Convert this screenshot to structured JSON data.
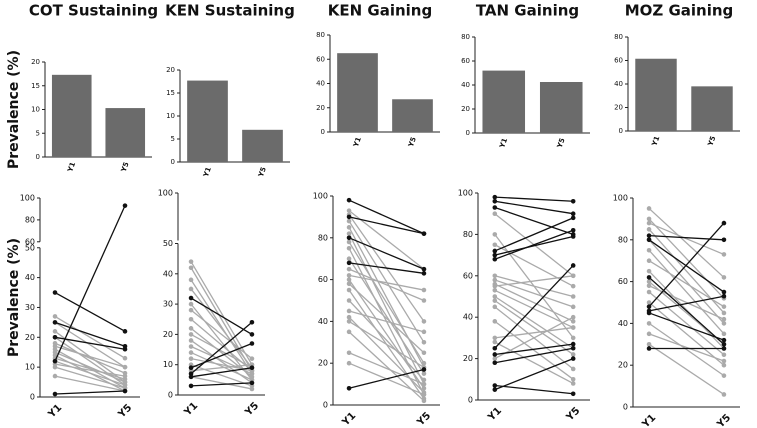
{
  "chart_data": [
    {
      "type": "bar",
      "title": "COT Sustaining",
      "y_label": "Prevalence (%)",
      "categories": [
        "Y1",
        "Y5"
      ],
      "values": [
        17.3,
        10.3
      ],
      "color": "#6b6b6b",
      "ylim": [
        0,
        20
      ],
      "yticks": [
        0,
        5,
        10,
        15,
        20
      ]
    },
    {
      "type": "bar",
      "title": "KEN Sustaining",
      "categories": [
        "Y1",
        "Y5"
      ],
      "values": [
        17.7,
        7.0
      ],
      "color": "#6b6b6b",
      "ylim": [
        0,
        20
      ],
      "yticks": [
        0,
        5,
        10,
        15,
        20
      ]
    },
    {
      "type": "bar",
      "title": "KEN Gaining",
      "categories": [
        "Y1",
        "Y5"
      ],
      "values": [
        65,
        27
      ],
      "color": "#6b6b6b",
      "ylim": [
        0,
        80
      ],
      "yticks": [
        0,
        20,
        40,
        60,
        80
      ]
    },
    {
      "type": "bar",
      "title": "TAN Gaining",
      "categories": [
        "Y1",
        "Y5"
      ],
      "values": [
        52,
        42.5
      ],
      "color": "#6b6b6b",
      "ylim": [
        0,
        80
      ],
      "yticks": [
        0,
        20,
        40,
        60,
        80
      ]
    },
    {
      "type": "bar",
      "title": "MOZ Gaining",
      "categories": [
        "Y1",
        "Y5"
      ],
      "values": [
        61.5,
        38
      ],
      "color": "#6b6b6b",
      "ylim": [
        0,
        80
      ],
      "yticks": [
        0,
        20,
        40,
        60,
        80
      ]
    },
    {
      "type": "line",
      "y_label": "Prevalence (%)",
      "categories": [
        "Y1",
        "Y5"
      ],
      "ylim": [
        0,
        100
      ],
      "axis_break": [
        50,
        60
      ],
      "yticks": [
        0,
        10,
        20,
        30,
        40,
        50,
        60,
        80,
        100
      ],
      "series": [
        {
          "color": "#aaaaaa",
          "values": [
            25,
            10
          ]
        },
        {
          "color": "#aaaaaa",
          "values": [
            22,
            5
          ]
        },
        {
          "color": "#aaaaaa",
          "values": [
            20,
            4
          ]
        },
        {
          "color": "#aaaaaa",
          "values": [
            18,
            8
          ]
        },
        {
          "color": "#aaaaaa",
          "values": [
            16,
            3
          ]
        },
        {
          "color": "#aaaaaa",
          "values": [
            15,
            5
          ]
        },
        {
          "color": "#aaaaaa",
          "values": [
            14,
            2
          ]
        },
        {
          "color": "#aaaaaa",
          "values": [
            13,
            6
          ]
        },
        {
          "color": "#aaaaaa",
          "values": [
            12,
            4
          ]
        },
        {
          "color": "#aaaaaa",
          "values": [
            11,
            7
          ]
        },
        {
          "color": "#aaaaaa",
          "values": [
            10,
            3
          ]
        },
        {
          "color": "#aaaaaa",
          "values": [
            17,
            10
          ]
        },
        {
          "color": "#aaaaaa",
          "values": [
            27,
            13
          ]
        },
        {
          "color": "#aaaaaa",
          "values": [
            7,
            2
          ]
        },
        {
          "color": "#111111",
          "values": [
            35,
            22
          ]
        },
        {
          "color": "#111111",
          "values": [
            25,
            17
          ]
        },
        {
          "color": "#111111",
          "values": [
            20,
            16
          ]
        },
        {
          "color": "#111111",
          "values": [
            1,
            2
          ]
        },
        {
          "color": "#111111",
          "values": [
            12,
            93
          ]
        }
      ]
    },
    {
      "type": "line",
      "categories": [
        "Y1",
        "Y5"
      ],
      "ylim": [
        0,
        100
      ],
      "axis_break": [
        50,
        50
      ],
      "yticks": [
        0,
        10,
        20,
        30,
        40,
        50,
        100
      ],
      "series": [
        {
          "color": "#aaaaaa",
          "values": [
            44,
            10
          ]
        },
        {
          "color": "#aaaaaa",
          "values": [
            42,
            8
          ]
        },
        {
          "color": "#aaaaaa",
          "values": [
            38,
            7
          ]
        },
        {
          "color": "#aaaaaa",
          "values": [
            35,
            9
          ]
        },
        {
          "color": "#aaaaaa",
          "values": [
            30,
            5
          ]
        },
        {
          "color": "#aaaaaa",
          "values": [
            28,
            12
          ]
        },
        {
          "color": "#aaaaaa",
          "values": [
            25,
            8
          ]
        },
        {
          "color": "#aaaaaa",
          "values": [
            22,
            6
          ]
        },
        {
          "color": "#aaaaaa",
          "values": [
            20,
            9
          ]
        },
        {
          "color": "#aaaaaa",
          "values": [
            18,
            4
          ]
        },
        {
          "color": "#aaaaaa",
          "values": [
            16,
            7
          ]
        },
        {
          "color": "#aaaaaa",
          "values": [
            14,
            5
          ]
        },
        {
          "color": "#aaaaaa",
          "values": [
            12,
            8
          ]
        },
        {
          "color": "#aaaaaa",
          "values": [
            10,
            3
          ]
        },
        {
          "color": "#aaaaaa",
          "values": [
            8,
            10
          ]
        },
        {
          "color": "#aaaaaa",
          "values": [
            6,
            2
          ]
        },
        {
          "color": "#111111",
          "values": [
            32,
            20
          ]
        },
        {
          "color": "#111111",
          "values": [
            9,
            17
          ]
        },
        {
          "color": "#111111",
          "values": [
            7,
            24
          ]
        },
        {
          "color": "#111111",
          "values": [
            6,
            9
          ]
        },
        {
          "color": "#111111",
          "values": [
            3,
            4
          ]
        }
      ]
    },
    {
      "type": "line",
      "categories": [
        "Y1",
        "Y5"
      ],
      "ylim": [
        0,
        100
      ],
      "yticks": [
        0,
        20,
        40,
        60,
        80,
        100
      ],
      "series": [
        {
          "color": "#aaaaaa",
          "values": [
            93,
            65
          ]
        },
        {
          "color": "#aaaaaa",
          "values": [
            91,
            40
          ]
        },
        {
          "color": "#aaaaaa",
          "values": [
            88,
            30
          ]
        },
        {
          "color": "#aaaaaa",
          "values": [
            85,
            18
          ]
        },
        {
          "color": "#aaaaaa",
          "values": [
            82,
            10
          ]
        },
        {
          "color": "#aaaaaa",
          "values": [
            78,
            20
          ]
        },
        {
          "color": "#aaaaaa",
          "values": [
            75,
            5
          ]
        },
        {
          "color": "#aaaaaa",
          "values": [
            70,
            15
          ]
        },
        {
          "color": "#aaaaaa",
          "values": [
            65,
            50
          ]
        },
        {
          "color": "#aaaaaa",
          "values": [
            60,
            8
          ]
        },
        {
          "color": "#aaaaaa",
          "values": [
            58,
            25
          ]
        },
        {
          "color": "#aaaaaa",
          "values": [
            55,
            3
          ]
        },
        {
          "color": "#aaaaaa",
          "values": [
            50,
            12
          ]
        },
        {
          "color": "#aaaaaa",
          "values": [
            45,
            35
          ]
        },
        {
          "color": "#aaaaaa",
          "values": [
            42,
            6
          ]
        },
        {
          "color": "#aaaaaa",
          "values": [
            40,
            18
          ]
        },
        {
          "color": "#aaaaaa",
          "values": [
            35,
            2
          ]
        },
        {
          "color": "#aaaaaa",
          "values": [
            25,
            10
          ]
        },
        {
          "color": "#aaaaaa",
          "values": [
            20,
            5
          ]
        },
        {
          "color": "#aaaaaa",
          "values": [
            62,
            55
          ]
        },
        {
          "color": "#111111",
          "values": [
            98,
            82
          ]
        },
        {
          "color": "#111111",
          "values": [
            90,
            82
          ]
        },
        {
          "color": "#111111",
          "values": [
            68,
            63
          ]
        },
        {
          "color": "#111111",
          "values": [
            80,
            65
          ]
        },
        {
          "color": "#111111",
          "values": [
            8,
            17
          ]
        }
      ]
    },
    {
      "type": "line",
      "categories": [
        "Y1",
        "Y5"
      ],
      "ylim": [
        0,
        100
      ],
      "yticks": [
        0,
        20,
        40,
        60,
        80,
        100
      ],
      "series": [
        {
          "color": "#aaaaaa",
          "values": [
            80,
            30
          ]
        },
        {
          "color": "#aaaaaa",
          "values": [
            60,
            50
          ]
        },
        {
          "color": "#aaaaaa",
          "values": [
            58,
            45
          ]
        },
        {
          "color": "#aaaaaa",
          "values": [
            56,
            38
          ]
        },
        {
          "color": "#aaaaaa",
          "values": [
            55,
            60
          ]
        },
        {
          "color": "#aaaaaa",
          "values": [
            53,
            35
          ]
        },
        {
          "color": "#aaaaaa",
          "values": [
            50,
            25
          ]
        },
        {
          "color": "#aaaaaa",
          "values": [
            48,
            22
          ]
        },
        {
          "color": "#aaaaaa",
          "values": [
            45,
            15
          ]
        },
        {
          "color": "#aaaaaa",
          "values": [
            38,
            10
          ]
        },
        {
          "color": "#aaaaaa",
          "values": [
            30,
            35
          ]
        },
        {
          "color": "#aaaaaa",
          "values": [
            28,
            8
          ]
        },
        {
          "color": "#aaaaaa",
          "values": [
            20,
            40
          ]
        },
        {
          "color": "#aaaaaa",
          "values": [
            90,
            60
          ]
        },
        {
          "color": "#aaaaaa",
          "values": [
            75,
            55
          ]
        },
        {
          "color": "#111111",
          "values": [
            98,
            96
          ]
        },
        {
          "color": "#111111",
          "values": [
            96,
            90
          ]
        },
        {
          "color": "#111111",
          "values": [
            93,
            80
          ]
        },
        {
          "color": "#111111",
          "values": [
            72,
            88
          ]
        },
        {
          "color": "#111111",
          "values": [
            70,
            79
          ]
        },
        {
          "color": "#111111",
          "values": [
            68,
            82
          ]
        },
        {
          "color": "#111111",
          "values": [
            25,
            65
          ]
        },
        {
          "color": "#111111",
          "values": [
            22,
            27
          ]
        },
        {
          "color": "#111111",
          "values": [
            18,
            25
          ]
        },
        {
          "color": "#111111",
          "values": [
            7,
            3
          ]
        },
        {
          "color": "#111111",
          "values": [
            5,
            20
          ]
        }
      ]
    },
    {
      "type": "line",
      "categories": [
        "Y1",
        "Y5"
      ],
      "ylim": [
        0,
        100
      ],
      "yticks": [
        0,
        20,
        40,
        60,
        80,
        100
      ],
      "series": [
        {
          "color": "#aaaaaa",
          "values": [
            95,
            62
          ]
        },
        {
          "color": "#aaaaaa",
          "values": [
            90,
            52
          ]
        },
        {
          "color": "#aaaaaa",
          "values": [
            88,
            73
          ]
        },
        {
          "color": "#aaaaaa",
          "values": [
            85,
            45
          ]
        },
        {
          "color": "#aaaaaa",
          "values": [
            80,
            40
          ]
        },
        {
          "color": "#aaaaaa",
          "values": [
            75,
            35
          ]
        },
        {
          "color": "#aaaaaa",
          "values": [
            70,
            48
          ]
        },
        {
          "color": "#aaaaaa",
          "values": [
            65,
            28
          ]
        },
        {
          "color": "#aaaaaa",
          "values": [
            60,
            30
          ]
        },
        {
          "color": "#aaaaaa",
          "values": [
            55,
            25
          ]
        },
        {
          "color": "#aaaaaa",
          "values": [
            50,
            20
          ]
        },
        {
          "color": "#aaaaaa",
          "values": [
            40,
            15
          ]
        },
        {
          "color": "#aaaaaa",
          "values": [
            35,
            22
          ]
        },
        {
          "color": "#aaaaaa",
          "values": [
            30,
            6
          ]
        },
        {
          "color": "#aaaaaa",
          "values": [
            58,
            42
          ]
        },
        {
          "color": "#111111",
          "values": [
            82,
            80
          ]
        },
        {
          "color": "#111111",
          "values": [
            80,
            55
          ]
        },
        {
          "color": "#111111",
          "values": [
            62,
            30
          ]
        },
        {
          "color": "#111111",
          "values": [
            48,
            88
          ]
        },
        {
          "color": "#111111",
          "values": [
            46,
            53
          ]
        },
        {
          "color": "#111111",
          "values": [
            28,
            28
          ]
        },
        {
          "color": "#111111",
          "values": [
            45,
            32
          ]
        }
      ]
    }
  ]
}
